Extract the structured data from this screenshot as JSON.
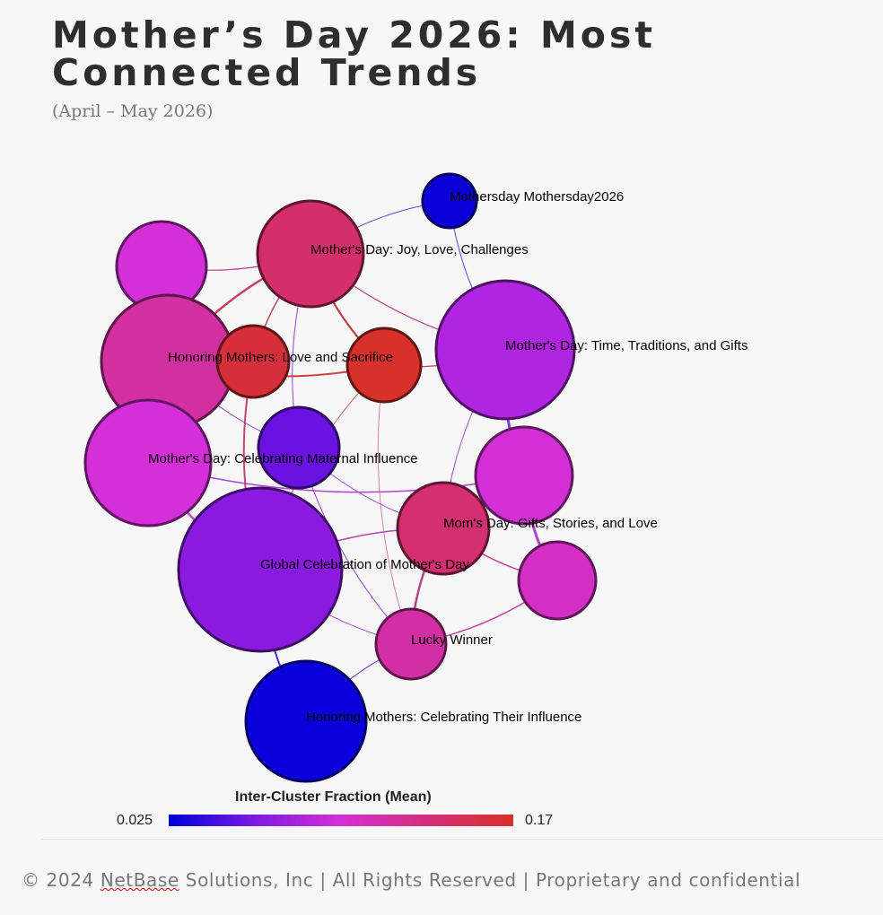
{
  "header": {
    "title": "Mother’s Day 2026: Most Connected Trends",
    "subtitle": "(April – May 2026)"
  },
  "graph": {
    "nodes": [
      {
        "id": "n_top_small",
        "label": "Mothersday Mothersday2026",
        "color": "#0a00d8"
      },
      {
        "id": "n_joy",
        "label": "Mother's Day: Joy, Love, Challenges",
        "color": "#d42f68"
      },
      {
        "id": "n_upper_left",
        "label": "",
        "color": "#d42fd8"
      },
      {
        "id": "n_time",
        "label": "Mother's Day: Time, Traditions, and Gifts",
        "color": "#b026e0"
      },
      {
        "id": "n_honor_big",
        "label": "Honoring Mothers: Love and Sacrifice",
        "color": "#d22fa0"
      },
      {
        "id": "n_red_left",
        "label": "",
        "color": "#d62f3a"
      },
      {
        "id": "n_red_right",
        "label": "",
        "color": "#d8302a"
      },
      {
        "id": "n_celebrating",
        "label": "Mother's Day: Celebrating Maternal Influence",
        "color": "#d42fd8"
      },
      {
        "id": "n_purple_small",
        "label": "",
        "color": "#6a12e0"
      },
      {
        "id": "n_moms_upper",
        "label": "",
        "color": "#d42fd4"
      },
      {
        "id": "n_moms",
        "label": "Mom's Day: Gifts, Stories, and Love",
        "color": "#d42f6e"
      },
      {
        "id": "n_right_small",
        "label": "",
        "color": "#d42fc4"
      },
      {
        "id": "n_global",
        "label": "Global Celebration of Mother's Day",
        "color": "#8a1ae0"
      },
      {
        "id": "n_lucky",
        "label": "Lucky Winner",
        "color": "#d22fa4"
      },
      {
        "id": "n_influence",
        "label": "Honoring Mothers: Celebrating Their Influence",
        "color": "#0a00dc"
      }
    ],
    "edges": [
      {
        "from": "n_top_small",
        "to": "n_joy",
        "color": "#5a2ae0",
        "weight": 1
      },
      {
        "from": "n_top_small",
        "to": "n_time",
        "color": "#5a2ae0",
        "weight": 1
      },
      {
        "from": "n_upper_left",
        "to": "n_joy",
        "color": "#b0307a",
        "weight": 1.2
      },
      {
        "from": "n_joy",
        "to": "n_honor_big",
        "color": "#c03050",
        "weight": 2.5
      },
      {
        "from": "n_joy",
        "to": "n_red_left",
        "color": "#c03040",
        "weight": 1.5
      },
      {
        "from": "n_joy",
        "to": "n_red_right",
        "color": "#b02a30",
        "weight": 2.2
      },
      {
        "from": "n_joy",
        "to": "n_time",
        "color": "#b0307a",
        "weight": 1.3
      },
      {
        "from": "n_joy",
        "to": "n_purple_small",
        "color": "#8a2ad0",
        "weight": 1
      },
      {
        "from": "n_honor_big",
        "to": "n_red_right",
        "color": "#c0302a",
        "weight": 2
      },
      {
        "from": "n_red_right",
        "to": "n_time",
        "color": "#c03050",
        "weight": 1.3
      },
      {
        "from": "n_red_left",
        "to": "n_global",
        "color": "#c03060",
        "weight": 2
      },
      {
        "from": "n_red_right",
        "to": "n_global",
        "color": "#c05060",
        "weight": 1
      },
      {
        "from": "n_honor_big",
        "to": "n_celebrating",
        "color": "#b040c0",
        "weight": 1.5
      },
      {
        "from": "n_honor_big",
        "to": "n_purple_small",
        "color": "#9040d0",
        "weight": 1
      },
      {
        "from": "n_time",
        "to": "n_moms_upper",
        "color": "#6a2ad0",
        "weight": 3
      },
      {
        "from": "n_time",
        "to": "n_moms",
        "color": "#9040c0",
        "weight": 1
      },
      {
        "from": "n_celebrating",
        "to": "n_global",
        "color": "#b030d0",
        "weight": 2.5
      },
      {
        "from": "n_celebrating",
        "to": "n_moms_upper",
        "color": "#a030d0",
        "weight": 1.5
      },
      {
        "from": "n_purple_small",
        "to": "n_lucky",
        "color": "#8a2ad0",
        "weight": 1
      },
      {
        "from": "n_purple_small",
        "to": "n_moms",
        "color": "#a040d0",
        "weight": 1
      },
      {
        "from": "n_moms_upper",
        "to": "n_right_small",
        "color": "#b030c0",
        "weight": 3
      },
      {
        "from": "n_moms",
        "to": "n_lucky",
        "color": "#b0307a",
        "weight": 2.5
      },
      {
        "from": "n_moms",
        "to": "n_global",
        "color": "#b030a0",
        "weight": 1.5
      },
      {
        "from": "n_moms",
        "to": "n_right_small",
        "color": "#c03090",
        "weight": 1.5
      },
      {
        "from": "n_global",
        "to": "n_lucky",
        "color": "#9a30d0",
        "weight": 1
      },
      {
        "from": "n_global",
        "to": "n_influence",
        "color": "#3a10d0",
        "weight": 2
      },
      {
        "from": "n_lucky",
        "to": "n_right_small",
        "color": "#c0309a",
        "weight": 1.5
      },
      {
        "from": "n_lucky",
        "to": "n_influence",
        "color": "#6a20d0",
        "weight": 1
      },
      {
        "from": "n_red_right",
        "to": "n_lucky",
        "color": "#d070b0",
        "weight": 1
      }
    ]
  },
  "legend": {
    "title": "Inter-Cluster Fraction (Mean)",
    "min_label": "0.025",
    "max_label": "0.17",
    "gradient_colors": [
      "#0000d8",
      "#7d1be0",
      "#d42fd4",
      "#d32f7a",
      "#d8302a"
    ]
  },
  "footer": {
    "prefix": "© 2024 ",
    "brand": "NetBase",
    "suffix": " Solutions, Inc | All Rights Reserved | Proprietary and confidential"
  }
}
